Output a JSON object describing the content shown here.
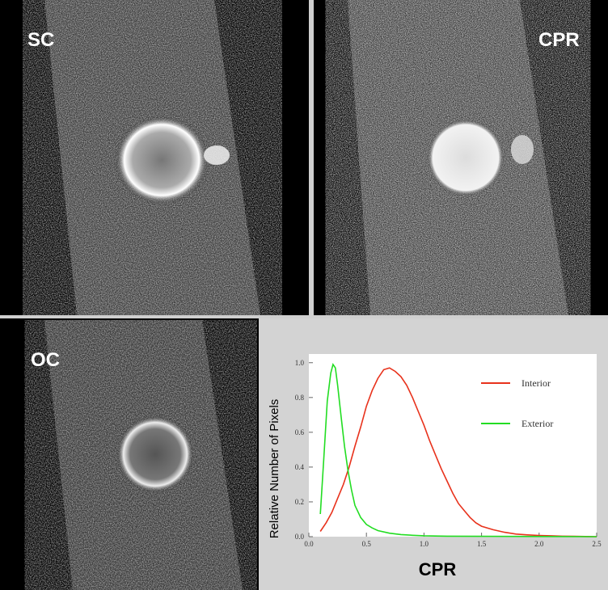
{
  "panels": {
    "sc": {
      "label": "SC"
    },
    "cpr": {
      "label": "CPR"
    },
    "oc": {
      "label": "OC"
    }
  },
  "chart_data": {
    "type": "line",
    "title": "",
    "xlabel": "CPR",
    "ylabel": "Relative Number of Pixels",
    "xlim": [
      0,
      2.5
    ],
    "ylim": [
      0,
      1.05
    ],
    "xticks": [
      "0.0",
      "0.5",
      "1.0",
      "1.5",
      "2.0",
      "2.5"
    ],
    "yticks": [
      "0.0",
      "0.2",
      "0.4",
      "0.6",
      "0.8",
      "1.0"
    ],
    "grid": false,
    "legend": "top-right",
    "series": [
      {
        "name": "Interior",
        "color": "#e8321c",
        "x": [
          0.1,
          0.15,
          0.2,
          0.25,
          0.3,
          0.35,
          0.4,
          0.45,
          0.5,
          0.55,
          0.6,
          0.65,
          0.7,
          0.75,
          0.8,
          0.85,
          0.9,
          0.95,
          1.0,
          1.05,
          1.1,
          1.15,
          1.2,
          1.25,
          1.3,
          1.35,
          1.4,
          1.45,
          1.5,
          1.6,
          1.7,
          1.8,
          1.9,
          2.0,
          2.1,
          2.2,
          2.3,
          2.4,
          2.5
        ],
        "y": [
          0.03,
          0.08,
          0.14,
          0.22,
          0.3,
          0.4,
          0.52,
          0.63,
          0.75,
          0.84,
          0.91,
          0.96,
          0.97,
          0.95,
          0.92,
          0.87,
          0.8,
          0.72,
          0.64,
          0.55,
          0.47,
          0.39,
          0.32,
          0.25,
          0.19,
          0.15,
          0.11,
          0.08,
          0.06,
          0.04,
          0.025,
          0.015,
          0.01,
          0.007,
          0.005,
          0.003,
          0.002,
          0.001,
          0.0
        ]
      },
      {
        "name": "Exterior",
        "color": "#22dd22",
        "x": [
          0.1,
          0.13,
          0.16,
          0.19,
          0.21,
          0.23,
          0.25,
          0.28,
          0.31,
          0.34,
          0.37,
          0.4,
          0.45,
          0.5,
          0.55,
          0.6,
          0.7,
          0.8,
          0.9,
          1.0,
          1.2,
          1.5,
          2.0,
          2.5
        ],
        "y": [
          0.13,
          0.45,
          0.78,
          0.94,
          0.99,
          0.97,
          0.87,
          0.69,
          0.52,
          0.38,
          0.27,
          0.18,
          0.11,
          0.07,
          0.05,
          0.035,
          0.02,
          0.012,
          0.008,
          0.005,
          0.003,
          0.002,
          0.001,
          0.0
        ]
      }
    ]
  }
}
